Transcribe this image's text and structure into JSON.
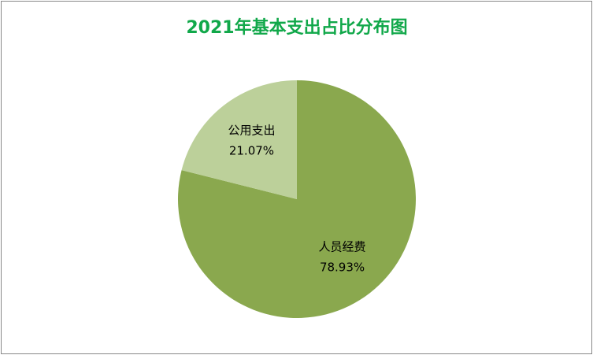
{
  "chart_data": {
    "type": "pie",
    "title": "2021年基本支出占比分布图",
    "categories": [
      "人员经费",
      "公用支出"
    ],
    "values": [
      78.93,
      21.07
    ],
    "value_labels": [
      "78.93%",
      "21.07%"
    ],
    "colors": [
      "#8aa84e",
      "#bcd09a"
    ],
    "title_color": "#11a84a"
  }
}
